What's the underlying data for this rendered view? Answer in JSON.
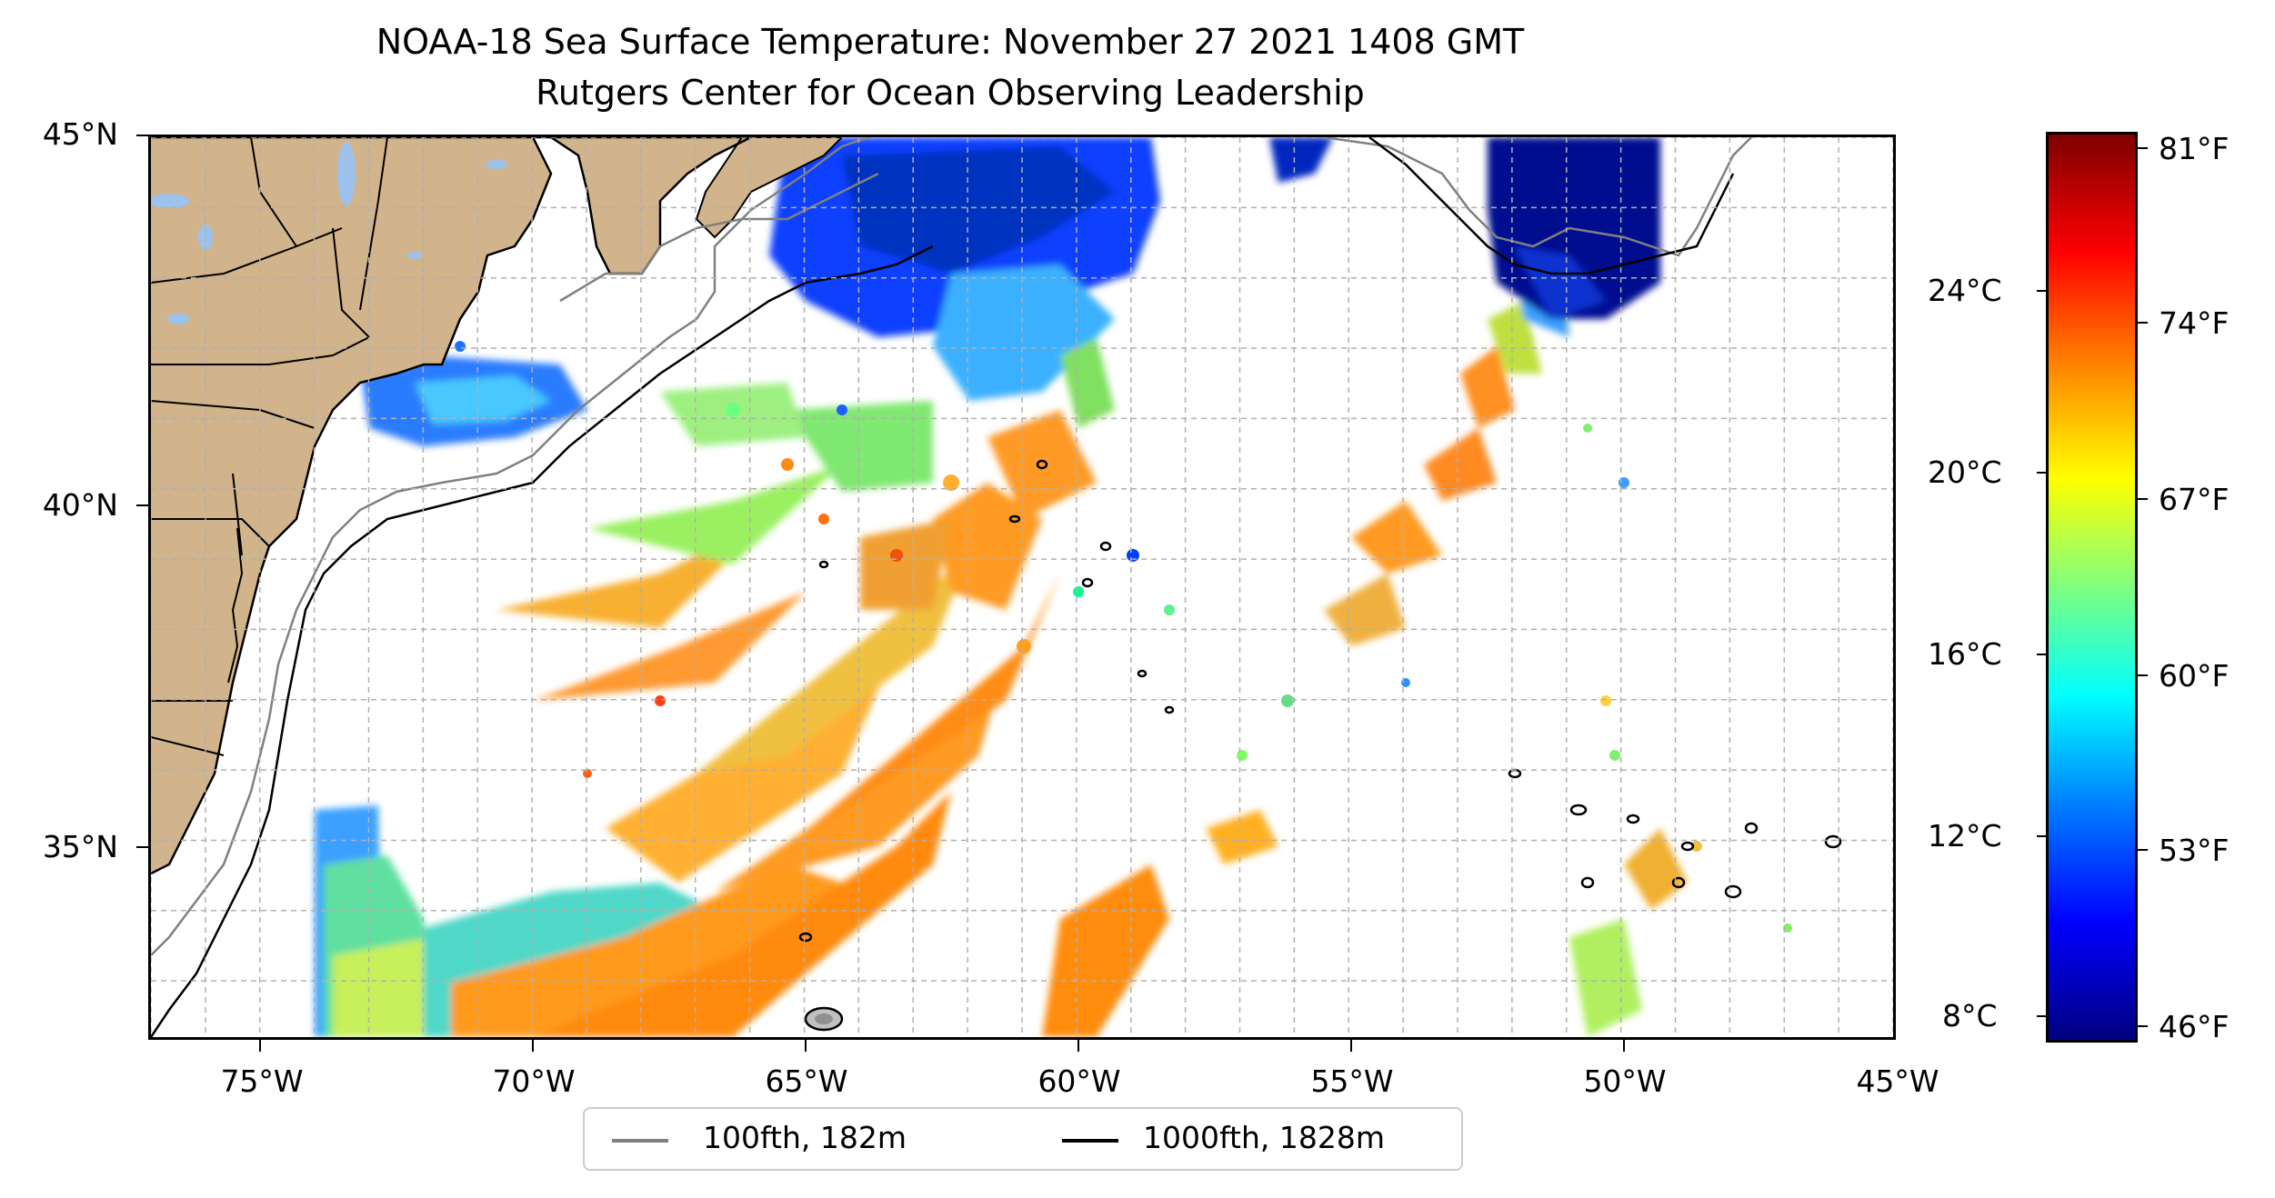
{
  "title": "NOAA-18 Sea Surface Temperature: November 27 2021 1408 GMT",
  "subtitle": "Rutgers Center for Ocean Observing Leadership",
  "lat_labels": [
    "45°N",
    "40°N",
    "35°N"
  ],
  "lon_labels": [
    "75°W",
    "70°W",
    "65°W",
    "60°W",
    "55°W",
    "50°W",
    "45°W"
  ],
  "extent": {
    "lon": [
      -77,
      -45
    ],
    "lat": [
      32.2,
      45
    ]
  },
  "colorbar": {
    "celsius_labels": [
      "24°C",
      "20°C",
      "16°C",
      "12°C",
      "8°C"
    ],
    "fahrenheit_labels": [
      "81°F",
      "74°F",
      "67°F",
      "60°F",
      "53°F",
      "46°F"
    ],
    "range_f": [
      45,
      82
    ],
    "colormap": "jet"
  },
  "legend": {
    "items": [
      {
        "label": "100fth, 182m",
        "color": "#808080"
      },
      {
        "label": "1000fth, 1828m",
        "color": "#000000"
      }
    ]
  },
  "colors": {
    "land": "#d2b48c",
    "lakes": "#9cc1ea",
    "grid": "#b0b0b0"
  }
}
